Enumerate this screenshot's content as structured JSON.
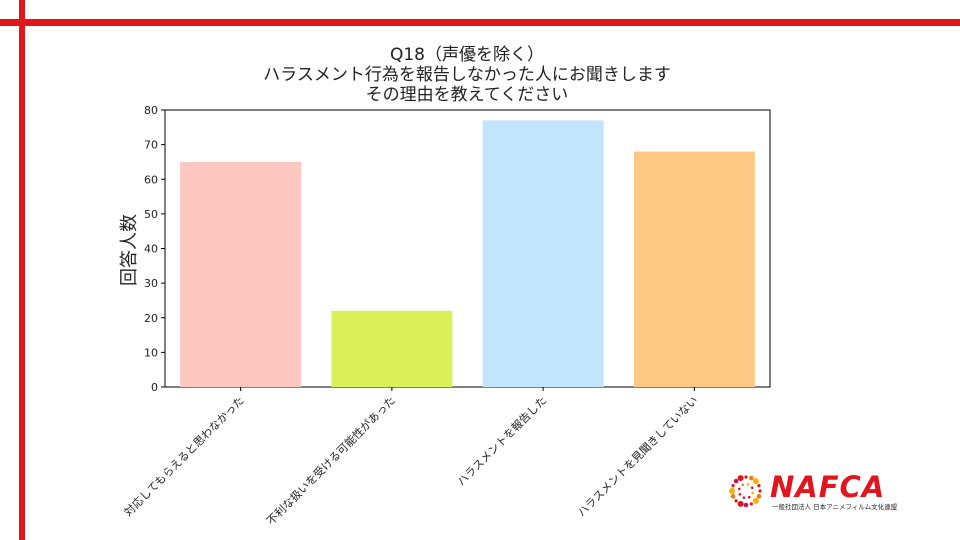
{
  "chart_data": {
    "type": "bar",
    "title_lines": [
      "Q18（声優を除く）",
      "ハラスメント行為を報告しなかった人にお聞きします",
      "その理由を教えてください"
    ],
    "xlabel": "",
    "ylabel": "回答人数",
    "ylim": [
      0,
      80
    ],
    "yticks": [
      0,
      10,
      20,
      30,
      40,
      50,
      60,
      70,
      80
    ],
    "grid": false,
    "categories": [
      "対応してもらえると思わなかった",
      "不利な扱いを受ける可能性があった",
      "ハラスメントを報告した",
      "ハラスメントを見聞きしていない"
    ],
    "values": [
      65,
      22,
      77,
      68
    ],
    "colors": [
      "#fcc8c0",
      "#d9f058",
      "#c2e4fc",
      "#fcc884"
    ]
  },
  "logo": {
    "wordmark": "NAFCA",
    "subtitle": "一般社団法人 日本アニメフィルム文化連盟"
  },
  "colors": {
    "accent_red": "#e2141c"
  }
}
